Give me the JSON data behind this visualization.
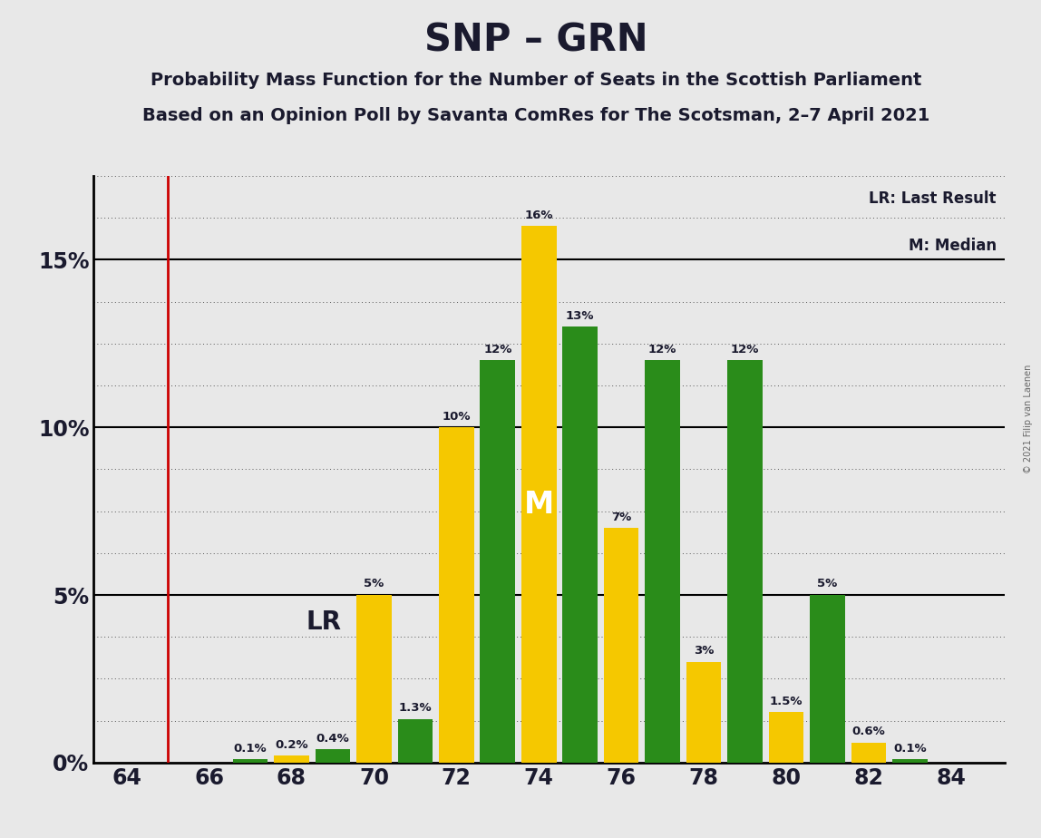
{
  "title": "SNP – GRN",
  "subtitle1": "Probability Mass Function for the Number of Seats in the Scottish Parliament",
  "subtitle2": "Based on an Opinion Poll by Savanta ComRes for The Scotsman, 2–7 April 2021",
  "copyright": "© 2021 Filip van Laenen",
  "seats": [
    64,
    65,
    66,
    67,
    68,
    69,
    70,
    71,
    72,
    73,
    74,
    75,
    76,
    77,
    78,
    79,
    80,
    81,
    82,
    83,
    84
  ],
  "values": [
    0.0,
    0.0,
    0.0,
    0.1,
    0.2,
    0.4,
    5.0,
    1.3,
    10.0,
    12.0,
    16.0,
    13.0,
    7.0,
    12.0,
    3.0,
    12.0,
    1.5,
    5.0,
    0.6,
    0.1,
    0.0
  ],
  "colors": [
    "#f5c800",
    "#2a8c1a",
    "#f5c800",
    "#2a8c1a",
    "#f5c800",
    "#2a8c1a",
    "#f5c800",
    "#2a8c1a",
    "#f5c800",
    "#2a8c1a",
    "#f5c800",
    "#2a8c1a",
    "#f5c800",
    "#2a8c1a",
    "#f5c800",
    "#2a8c1a",
    "#f5c800",
    "#2a8c1a",
    "#f5c800",
    "#2a8c1a",
    "#f5c800"
  ],
  "lr_seat": 65,
  "lr_color": "#cc0000",
  "median_seat": 74,
  "ylim_max": 17.5,
  "yticks": [
    0,
    5,
    10,
    15
  ],
  "ytick_labels": [
    "0%",
    "5%",
    "10%",
    "15%"
  ],
  "xticks": [
    64,
    66,
    68,
    70,
    72,
    74,
    76,
    78,
    80,
    82,
    84
  ],
  "background_color": "#e8e8e8",
  "bar_width": 0.85,
  "bar_label_fontsize": 9.5,
  "title_fontsize": 30,
  "subtitle_fontsize": 14,
  "axis_label_fontsize": 17,
  "legend_lr": "LR: Last Result",
  "legend_m": "M: Median",
  "lr_label": "LR",
  "m_label": "M",
  "text_color": "#1a1a2e",
  "grid_color": "#555555"
}
